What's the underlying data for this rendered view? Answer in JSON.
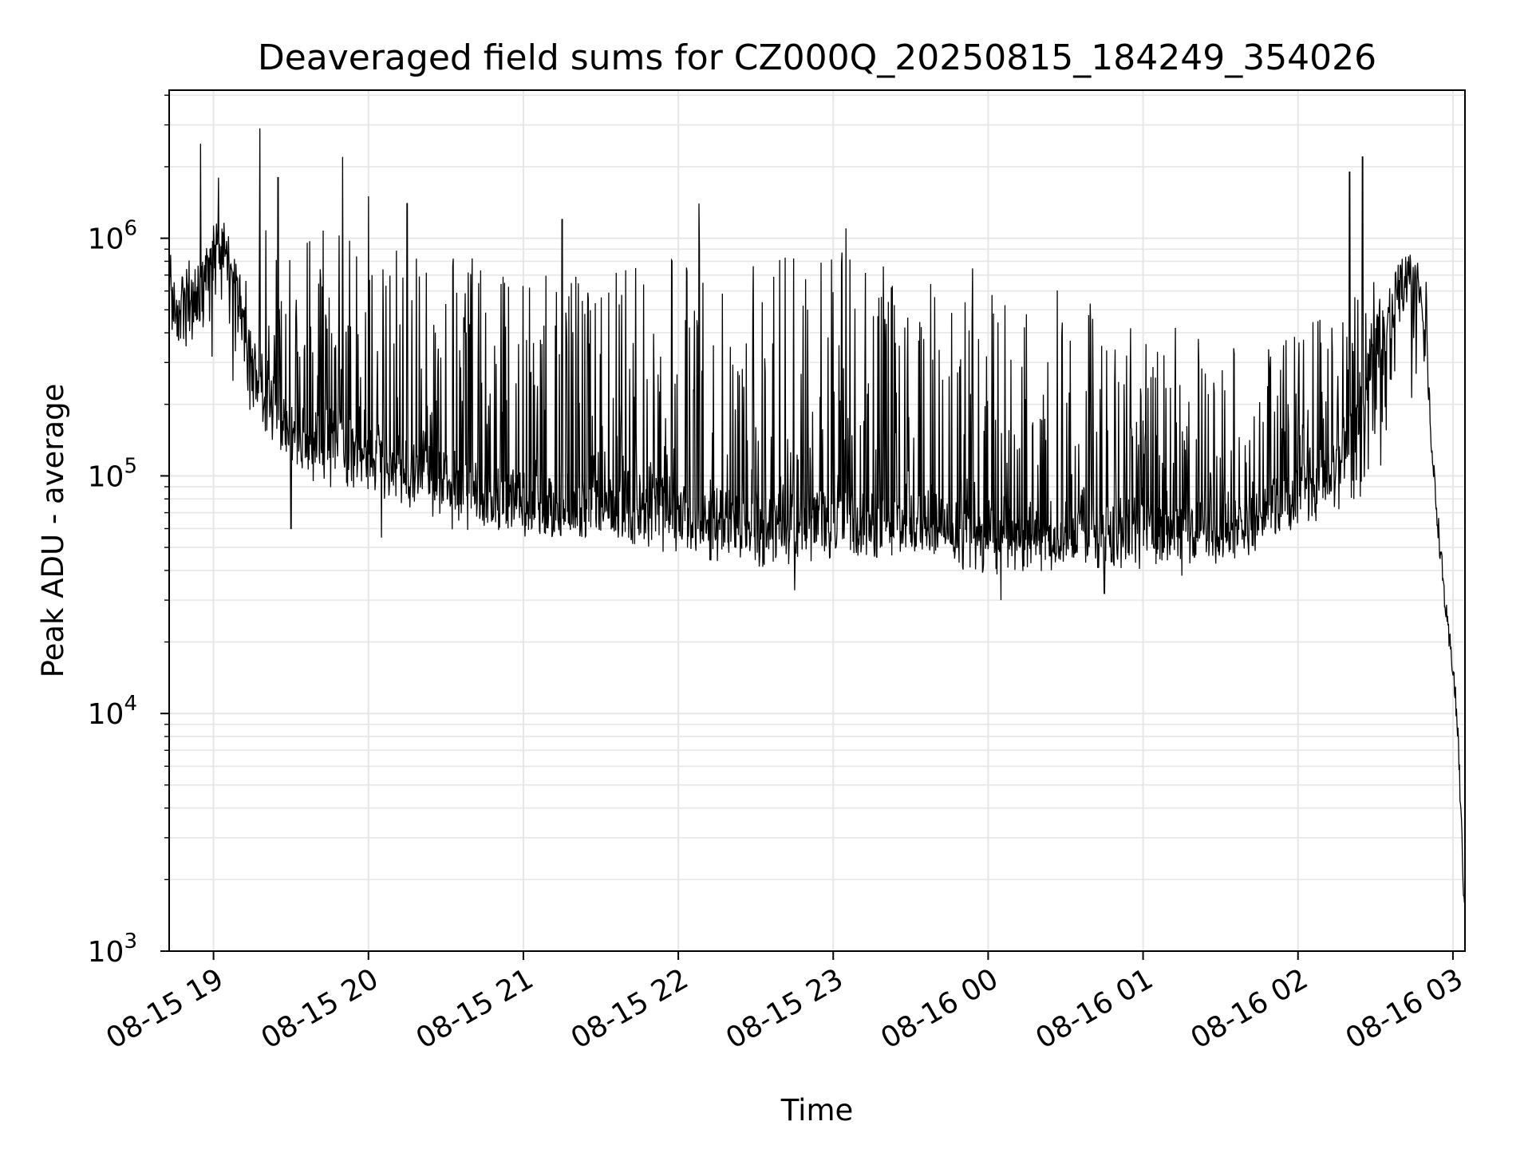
{
  "chart_data": {
    "type": "line",
    "title": "Deaveraged field sums for CZ000Q_20250815_184249_354026",
    "xlabel": "Time",
    "ylabel": "Peak ADU - average",
    "yscale": "log",
    "ylim": [
      1000,
      4200000
    ],
    "xlim": [
      "08-15 18:42:49",
      "08-16 03:04:40"
    ],
    "x_ticks": [
      "08-15 19",
      "08-15 20",
      "08-15 21",
      "08-15 22",
      "08-15 23",
      "08-16 00",
      "08-16 01",
      "08-16 02",
      "08-16 03"
    ],
    "y_ticks": [
      {
        "base": "10",
        "exp": "3",
        "value": 1000
      },
      {
        "base": "10",
        "exp": "4",
        "value": 10000
      },
      {
        "base": "10",
        "exp": "5",
        "value": 100000
      },
      {
        "base": "10",
        "exp": "6",
        "value": 1000000
      }
    ],
    "grid": "major and minor",
    "line_color": "#000000",
    "series": [
      {
        "baseline": [
          [
            "08-15 18:42:49",
            700000
          ],
          [
            "08-15 18:46",
            450000
          ],
          [
            "08-15 18:50",
            500000
          ],
          [
            "08-15 18:55",
            560000
          ],
          [
            "08-15 19:00",
            900000
          ],
          [
            "08-15 19:04",
            1000000
          ],
          [
            "08-15 19:08",
            650000
          ],
          [
            "08-15 19:12",
            380000
          ],
          [
            "08-15 19:16",
            250000
          ],
          [
            "08-15 19:20",
            250000
          ],
          [
            "08-15 19:30",
            150000
          ],
          [
            "08-15 19:45",
            150000
          ],
          [
            "08-15 20:00",
            130000
          ],
          [
            "08-15 20:15",
            110000
          ],
          [
            "08-15 20:30",
            100000
          ],
          [
            "08-15 20:45",
            85000
          ],
          [
            "08-15 21:00",
            78000
          ],
          [
            "08-15 21:15",
            72000
          ],
          [
            "08-15 21:30",
            75000
          ],
          [
            "08-15 21:45",
            80000
          ],
          [
            "08-15 22:00",
            70000
          ],
          [
            "08-15 22:30",
            65000
          ],
          [
            "08-15 23:00",
            65000
          ],
          [
            "08-15 23:30",
            65000
          ],
          [
            "08-16 00:00",
            60000
          ],
          [
            "08-16 00:30",
            60000
          ],
          [
            "08-16 01:00",
            58000
          ],
          [
            "08-16 01:30",
            60000
          ],
          [
            "08-16 02:00",
            80000
          ],
          [
            "08-16 02:15",
            110000
          ],
          [
            "08-16 02:25",
            220000
          ],
          [
            "08-16 02:35",
            480000
          ],
          [
            "08-16 02:42",
            700000
          ],
          [
            "08-16 02:47",
            620000
          ],
          [
            "08-16 02:50",
            300000
          ],
          [
            "08-16 02:52",
            120000
          ],
          [
            "08-16 02:55",
            50000
          ],
          [
            "08-16 02:58",
            22000
          ],
          [
            "08-16 03:00",
            16000
          ],
          [
            "08-16 03:02",
            8000
          ],
          [
            "08-16 03:03",
            4000
          ],
          [
            "08-16 03:04",
            2000
          ],
          [
            "08-16 03:04:40",
            1500
          ]
        ],
        "upper_envelope": [
          [
            "08-15 18:42:49",
            700000
          ],
          [
            "08-15 19:00",
            1000000
          ],
          [
            "08-15 19:10",
            700000
          ],
          [
            "08-15 19:20",
            1100000
          ],
          [
            "08-15 19:40",
            1100000
          ],
          [
            "08-15 20:00",
            1000000
          ],
          [
            "08-15 20:30",
            900000
          ],
          [
            "08-15 21:00",
            700000
          ],
          [
            "08-15 21:30",
            700000
          ],
          [
            "08-15 22:00",
            900000
          ],
          [
            "08-15 22:30",
            950000
          ],
          [
            "08-15 23:00",
            950000
          ],
          [
            "08-15 23:30",
            850000
          ],
          [
            "08-16 00:00",
            750000
          ],
          [
            "08-16 00:30",
            650000
          ],
          [
            "08-16 01:00",
            500000
          ],
          [
            "08-16 01:30",
            350000
          ],
          [
            "08-16 02:00",
            400000
          ],
          [
            "08-16 02:30",
            700000
          ],
          [
            "08-16 02:50",
            700000
          ]
        ],
        "lower_envelope": [
          [
            "08-15 18:42:49",
            400000
          ],
          [
            "08-15 19:20",
            150000
          ],
          [
            "08-15 19:40",
            90000
          ],
          [
            "08-15 20:00",
            85000
          ],
          [
            "08-15 20:30",
            60000
          ],
          [
            "08-15 21:00",
            55000
          ],
          [
            "08-15 21:30",
            55000
          ],
          [
            "08-15 22:00",
            45000
          ],
          [
            "08-15 22:30",
            40000
          ],
          [
            "08-15 23:00",
            45000
          ],
          [
            "08-15 23:30",
            45000
          ],
          [
            "08-16 00:00",
            38000
          ],
          [
            "08-16 00:30",
            40000
          ],
          [
            "08-16 01:00",
            40000
          ],
          [
            "08-16 01:30",
            42000
          ],
          [
            "08-16 02:00",
            55000
          ],
          [
            "08-16 02:30",
            90000
          ],
          [
            "08-16 02:50",
            300000
          ]
        ],
        "spikes": [
          [
            "08-15 18:55",
            2500000
          ],
          [
            "08-15 19:02",
            1800000
          ],
          [
            "08-15 19:18",
            2900000
          ],
          [
            "08-15 19:25",
            1800000
          ],
          [
            "08-15 19:50",
            2200000
          ],
          [
            "08-15 20:00",
            1500000
          ],
          [
            "08-15 20:15",
            1400000
          ],
          [
            "08-15 21:15",
            1200000
          ],
          [
            "08-15 22:08",
            1400000
          ],
          [
            "08-15 23:05",
            1100000
          ],
          [
            "08-16 02:20",
            1900000
          ],
          [
            "08-16 02:25",
            2200000
          ]
        ],
        "dips": [
          [
            "08-15 19:30",
            60000
          ],
          [
            "08-15 20:05",
            55000
          ],
          [
            "08-15 22:45",
            33000
          ],
          [
            "08-16 00:05",
            30000
          ],
          [
            "08-16 00:45",
            32000
          ],
          [
            "08-16 01:15",
            38000
          ]
        ]
      }
    ]
  }
}
